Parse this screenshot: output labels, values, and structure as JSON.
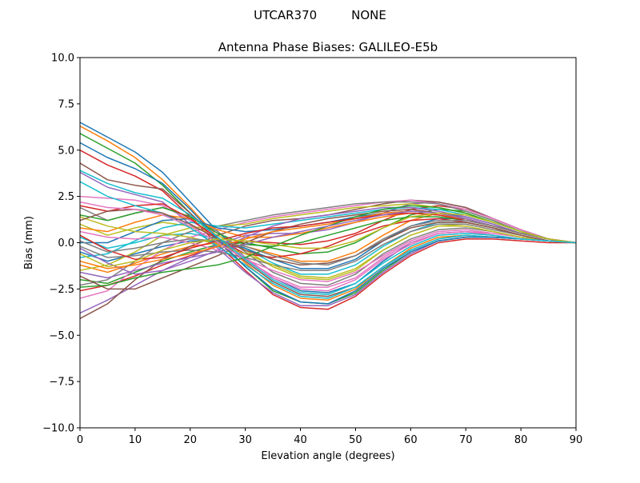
{
  "figure": {
    "suptitle": "UTCAR370         NONE"
  },
  "chart_data": {
    "type": "line",
    "title": "Antenna Phase Biases: GALILEO-E5b",
    "xlabel": "Elevation angle (degrees)",
    "ylabel": "Bias (mm)",
    "xlim": [
      0,
      90
    ],
    "ylim": [
      -10,
      10
    ],
    "xticks": [
      0,
      10,
      20,
      30,
      40,
      50,
      60,
      70,
      80,
      90
    ],
    "yticks": [
      -10.0,
      -7.5,
      -5.0,
      -2.5,
      0.0,
      2.5,
      5.0,
      7.5,
      10.0
    ],
    "ytick_labels": [
      "−10.0",
      "−7.5",
      "−5.0",
      "−2.5",
      "0.0",
      "2.5",
      "5.0",
      "7.5",
      "10.0"
    ],
    "grid": false,
    "legend": "none",
    "colors": [
      "#1f77b4",
      "#ff7f0e",
      "#2ca02c",
      "#d62728",
      "#9467bd",
      "#8c564b",
      "#e377c2",
      "#7f7f7f",
      "#bcbd22",
      "#17becf"
    ],
    "x": [
      0,
      5,
      10,
      15,
      20,
      25,
      30,
      35,
      40,
      45,
      50,
      55,
      60,
      65,
      70,
      75,
      80,
      85,
      90
    ],
    "series": [
      {
        "values": [
          6.5,
          5.7,
          4.9,
          3.8,
          2.2,
          0.6,
          -0.8,
          -1.9,
          -2.6,
          -2.7,
          -2.2,
          -1.0,
          0.0,
          0.5,
          0.6,
          0.4,
          0.2,
          0.1,
          0.0
        ]
      },
      {
        "values": [
          6.3,
          5.5,
          4.6,
          3.4,
          1.9,
          0.3,
          -1.1,
          -2.3,
          -3.0,
          -3.1,
          -2.5,
          -1.3,
          -0.3,
          0.3,
          0.4,
          0.3,
          0.2,
          0.1,
          0.0
        ]
      },
      {
        "values": [
          5.9,
          5.1,
          4.3,
          3.1,
          1.6,
          0.1,
          -1.3,
          -2.6,
          -3.2,
          -3.3,
          -2.7,
          -1.5,
          -0.5,
          0.1,
          0.3,
          0.3,
          0.2,
          0.1,
          0.0
        ]
      },
      {
        "values": [
          5.0,
          4.2,
          3.6,
          2.8,
          1.4,
          -0.1,
          -1.5,
          -2.8,
          -3.5,
          -3.6,
          -2.9,
          -1.7,
          -0.7,
          0.0,
          0.2,
          0.2,
          0.1,
          0.0,
          0.0
        ]
      },
      {
        "values": [
          3.8,
          3.0,
          2.6,
          2.2,
          1.0,
          -0.3,
          -1.6,
          -2.7,
          -3.4,
          -3.4,
          -2.8,
          -1.6,
          -0.6,
          0.1,
          0.3,
          0.3,
          0.2,
          0.1,
          0.0
        ]
      },
      {
        "values": [
          4.3,
          3.4,
          3.1,
          2.9,
          1.6,
          0.2,
          -1.0,
          -2.1,
          -2.8,
          -2.9,
          -2.4,
          -1.3,
          -0.4,
          0.2,
          0.4,
          0.3,
          0.2,
          0.1,
          0.0
        ]
      },
      {
        "values": [
          2.5,
          2.4,
          2.3,
          2.0,
          1.2,
          0.3,
          -0.8,
          -1.9,
          -2.5,
          -2.6,
          -2.0,
          -0.9,
          -0.1,
          0.5,
          0.6,
          0.5,
          0.3,
          0.1,
          0.0
        ]
      },
      {
        "values": [
          1.9,
          1.2,
          1.6,
          1.9,
          1.4,
          0.6,
          -0.5,
          -1.6,
          -2.2,
          -2.3,
          -1.7,
          -0.6,
          0.2,
          0.7,
          0.8,
          0.6,
          0.3,
          0.1,
          0.0
        ]
      },
      {
        "values": [
          1.0,
          0.4,
          0.8,
          1.1,
          0.9,
          0.4,
          -0.4,
          -1.3,
          -1.9,
          -2.0,
          -1.5,
          -0.4,
          0.4,
          0.9,
          1.0,
          0.7,
          0.4,
          0.1,
          0.0
        ]
      },
      {
        "values": [
          0.3,
          -0.3,
          0.0,
          0.4,
          0.5,
          0.2,
          -0.3,
          -1.1,
          -1.7,
          -1.7,
          -1.2,
          -0.2,
          0.6,
          1.1,
          1.1,
          0.8,
          0.4,
          0.1,
          0.0
        ]
      },
      {
        "values": [
          -0.5,
          -1.0,
          -0.6,
          -0.2,
          0.1,
          0.1,
          -0.3,
          -0.9,
          -1.4,
          -1.4,
          -0.9,
          0.1,
          0.9,
          1.3,
          1.3,
          0.9,
          0.5,
          0.2,
          0.0
        ]
      },
      {
        "values": [
          -1.2,
          -1.6,
          -1.1,
          -0.6,
          -0.2,
          0.0,
          -0.2,
          -0.6,
          -1.0,
          -1.0,
          -0.5,
          0.4,
          1.2,
          1.6,
          1.5,
          1.1,
          0.6,
          0.2,
          0.0
        ]
      },
      {
        "values": [
          -2.0,
          -2.2,
          -1.6,
          -1.0,
          -0.5,
          -0.1,
          0.0,
          -0.3,
          -0.6,
          -0.5,
          0.0,
          0.8,
          1.5,
          1.8,
          1.7,
          1.2,
          0.6,
          0.2,
          0.0
        ]
      },
      {
        "values": [
          -2.6,
          -2.3,
          -1.8,
          -1.2,
          -0.7,
          -0.2,
          0.1,
          0.0,
          -0.1,
          0.1,
          0.5,
          1.2,
          1.8,
          2.0,
          1.8,
          1.3,
          0.7,
          0.2,
          0.0
        ]
      },
      {
        "values": [
          -3.8,
          -3.1,
          -2.3,
          -1.5,
          -0.8,
          -0.1,
          0.4,
          0.5,
          0.5,
          0.7,
          1.1,
          1.6,
          2.1,
          2.2,
          1.9,
          1.3,
          0.7,
          0.2,
          0.0
        ]
      },
      {
        "values": [
          -4.1,
          -3.3,
          -2.0,
          -0.9,
          -0.2,
          0.4,
          0.9,
          1.2,
          1.3,
          1.5,
          1.8,
          2.1,
          2.3,
          2.2,
          1.9,
          1.3,
          0.7,
          0.2,
          0.0
        ]
      },
      {
        "values": [
          -3.0,
          -2.6,
          -1.4,
          -0.4,
          0.3,
          0.7,
          1.1,
          1.4,
          1.6,
          1.8,
          2.0,
          2.2,
          2.3,
          2.1,
          1.8,
          1.3,
          0.7,
          0.2,
          0.0
        ]
      },
      {
        "values": [
          -2.3,
          -2.0,
          -1.0,
          0.0,
          0.6,
          0.9,
          1.2,
          1.5,
          1.7,
          1.9,
          2.1,
          2.2,
          2.2,
          2.1,
          1.7,
          1.2,
          0.6,
          0.2,
          0.0
        ]
      },
      {
        "values": [
          -1.5,
          -1.2,
          -0.5,
          0.4,
          0.8,
          0.9,
          1.0,
          1.3,
          1.5,
          1.7,
          1.9,
          2.0,
          2.1,
          1.9,
          1.6,
          1.1,
          0.6,
          0.2,
          0.0
        ]
      },
      {
        "values": [
          -0.8,
          -0.6,
          0.1,
          0.8,
          1.1,
          0.9,
          0.8,
          1.0,
          1.2,
          1.4,
          1.6,
          1.8,
          1.9,
          1.8,
          1.5,
          1.1,
          0.6,
          0.2,
          0.0
        ]
      },
      {
        "values": [
          0.0,
          0.0,
          0.6,
          1.2,
          1.3,
          0.8,
          0.6,
          0.7,
          0.9,
          1.1,
          1.4,
          1.6,
          1.7,
          1.6,
          1.4,
          1.0,
          0.5,
          0.2,
          0.0
        ]
      },
      {
        "values": [
          0.8,
          0.6,
          1.1,
          1.5,
          1.3,
          0.7,
          0.3,
          0.3,
          0.5,
          0.8,
          1.1,
          1.4,
          1.6,
          1.5,
          1.3,
          0.9,
          0.5,
          0.2,
          0.0
        ]
      },
      {
        "values": [
          1.5,
          1.2,
          1.6,
          1.9,
          1.4,
          0.5,
          -0.1,
          -0.2,
          0.0,
          0.4,
          0.8,
          1.2,
          1.4,
          1.4,
          1.2,
          0.9,
          0.5,
          0.2,
          0.0
        ]
      },
      {
        "values": [
          2.0,
          1.7,
          2.0,
          2.1,
          1.3,
          0.2,
          -0.6,
          -0.8,
          -0.6,
          -0.2,
          0.4,
          0.9,
          1.2,
          1.3,
          1.1,
          0.8,
          0.4,
          0.1,
          0.0
        ]
      },
      {
        "values": [
          -0.3,
          -1.1,
          -1.7,
          -1.5,
          -1.0,
          -0.4,
          0.3,
          0.9,
          1.3,
          1.5,
          1.7,
          1.9,
          1.9,
          1.7,
          1.4,
          1.0,
          0.5,
          0.2,
          0.0
        ]
      },
      {
        "values": [
          -1.8,
          -2.5,
          -2.5,
          -1.9,
          -1.3,
          -0.7,
          0.0,
          0.6,
          1.0,
          1.3,
          1.5,
          1.7,
          1.8,
          1.6,
          1.3,
          0.9,
          0.5,
          0.2,
          0.0
        ]
      },
      {
        "values": [
          0.6,
          0.3,
          0.2,
          0.3,
          0.0,
          -0.4,
          -0.9,
          -1.5,
          -2.0,
          -2.1,
          -1.6,
          -0.7,
          0.1,
          0.6,
          0.7,
          0.5,
          0.3,
          0.1,
          0.0
        ]
      },
      {
        "values": [
          -0.2,
          -0.8,
          -0.7,
          -0.5,
          -0.4,
          -0.5,
          -0.8,
          -1.2,
          -1.5,
          -1.5,
          -1.0,
          -0.1,
          0.6,
          1.0,
          1.0,
          0.7,
          0.4,
          0.1,
          0.0
        ]
      },
      {
        "values": [
          1.4,
          0.9,
          0.6,
          0.5,
          0.3,
          -0.1,
          -0.6,
          -1.2,
          -1.8,
          -1.9,
          -1.4,
          -0.4,
          0.4,
          0.9,
          0.9,
          0.6,
          0.3,
          0.1,
          0.0
        ]
      },
      {
        "values": [
          3.3,
          2.5,
          2.0,
          1.6,
          0.8,
          -0.2,
          -1.2,
          -2.2,
          -2.9,
          -3.0,
          -2.4,
          -1.3,
          -0.4,
          0.2,
          0.4,
          0.3,
          0.2,
          0.1,
          0.0
        ]
      },
      {
        "values": [
          5.4,
          4.6,
          4.0,
          3.2,
          1.8,
          0.2,
          -1.3,
          -2.5,
          -3.2,
          -3.3,
          -2.6,
          -1.4,
          -0.5,
          0.1,
          0.3,
          0.3,
          0.2,
          0.1,
          0.0
        ]
      },
      {
        "values": [
          -1.0,
          -1.4,
          -1.2,
          -0.9,
          -0.6,
          -0.2,
          0.2,
          0.6,
          0.8,
          1.0,
          1.3,
          1.6,
          1.7,
          1.6,
          1.3,
          0.9,
          0.5,
          0.2,
          0.0
        ]
      },
      {
        "values": [
          -2.4,
          -2.3,
          -1.9,
          -1.6,
          -1.4,
          -1.2,
          -0.8,
          -0.2,
          0.4,
          0.9,
          1.4,
          1.8,
          2.0,
          1.9,
          1.6,
          1.1,
          0.6,
          0.2,
          0.0
        ]
      },
      {
        "values": [
          0.4,
          -0.4,
          -0.9,
          -0.8,
          -0.3,
          0.1,
          0.5,
          0.8,
          0.9,
          1.1,
          1.3,
          1.5,
          1.6,
          1.5,
          1.2,
          0.9,
          0.5,
          0.2,
          0.0
        ]
      },
      {
        "values": [
          -1.6,
          -1.9,
          -1.5,
          -1.1,
          -0.8,
          -0.5,
          -0.1,
          0.3,
          0.6,
          0.9,
          1.2,
          1.5,
          1.7,
          1.6,
          1.3,
          0.9,
          0.5,
          0.2,
          0.0
        ]
      },
      {
        "values": [
          1.2,
          1.7,
          1.8,
          1.6,
          1.0,
          0.2,
          -0.4,
          -0.9,
          -1.2,
          -1.1,
          -0.7,
          0.1,
          0.8,
          1.1,
          1.1,
          0.8,
          0.4,
          0.1,
          0.0
        ]
      },
      {
        "values": [
          2.2,
          1.9,
          1.8,
          1.5,
          0.9,
          0.0,
          -0.9,
          -1.8,
          -2.4,
          -2.4,
          -1.9,
          -0.8,
          0.0,
          0.5,
          0.6,
          0.4,
          0.2,
          0.1,
          0.0
        ]
      },
      {
        "values": [
          0.1,
          -0.5,
          -0.3,
          0.0,
          0.2,
          0.1,
          -0.2,
          -0.7,
          -1.1,
          -1.2,
          -0.7,
          0.2,
          0.9,
          1.2,
          1.2,
          0.9,
          0.5,
          0.2,
          0.0
        ]
      },
      {
        "values": [
          -0.6,
          -1.3,
          -1.0,
          -0.4,
          0.0,
          0.2,
          0.1,
          -0.1,
          -0.3,
          -0.3,
          0.1,
          0.8,
          1.4,
          1.6,
          1.5,
          1.1,
          0.6,
          0.2,
          0.0
        ]
      },
      {
        "values": [
          3.9,
          3.2,
          2.7,
          2.4,
          1.5,
          0.3,
          -0.9,
          -2.0,
          -2.7,
          -2.8,
          -2.2,
          -1.1,
          -0.2,
          0.4,
          0.5,
          0.4,
          0.2,
          0.1,
          0.0
        ]
      }
    ]
  }
}
